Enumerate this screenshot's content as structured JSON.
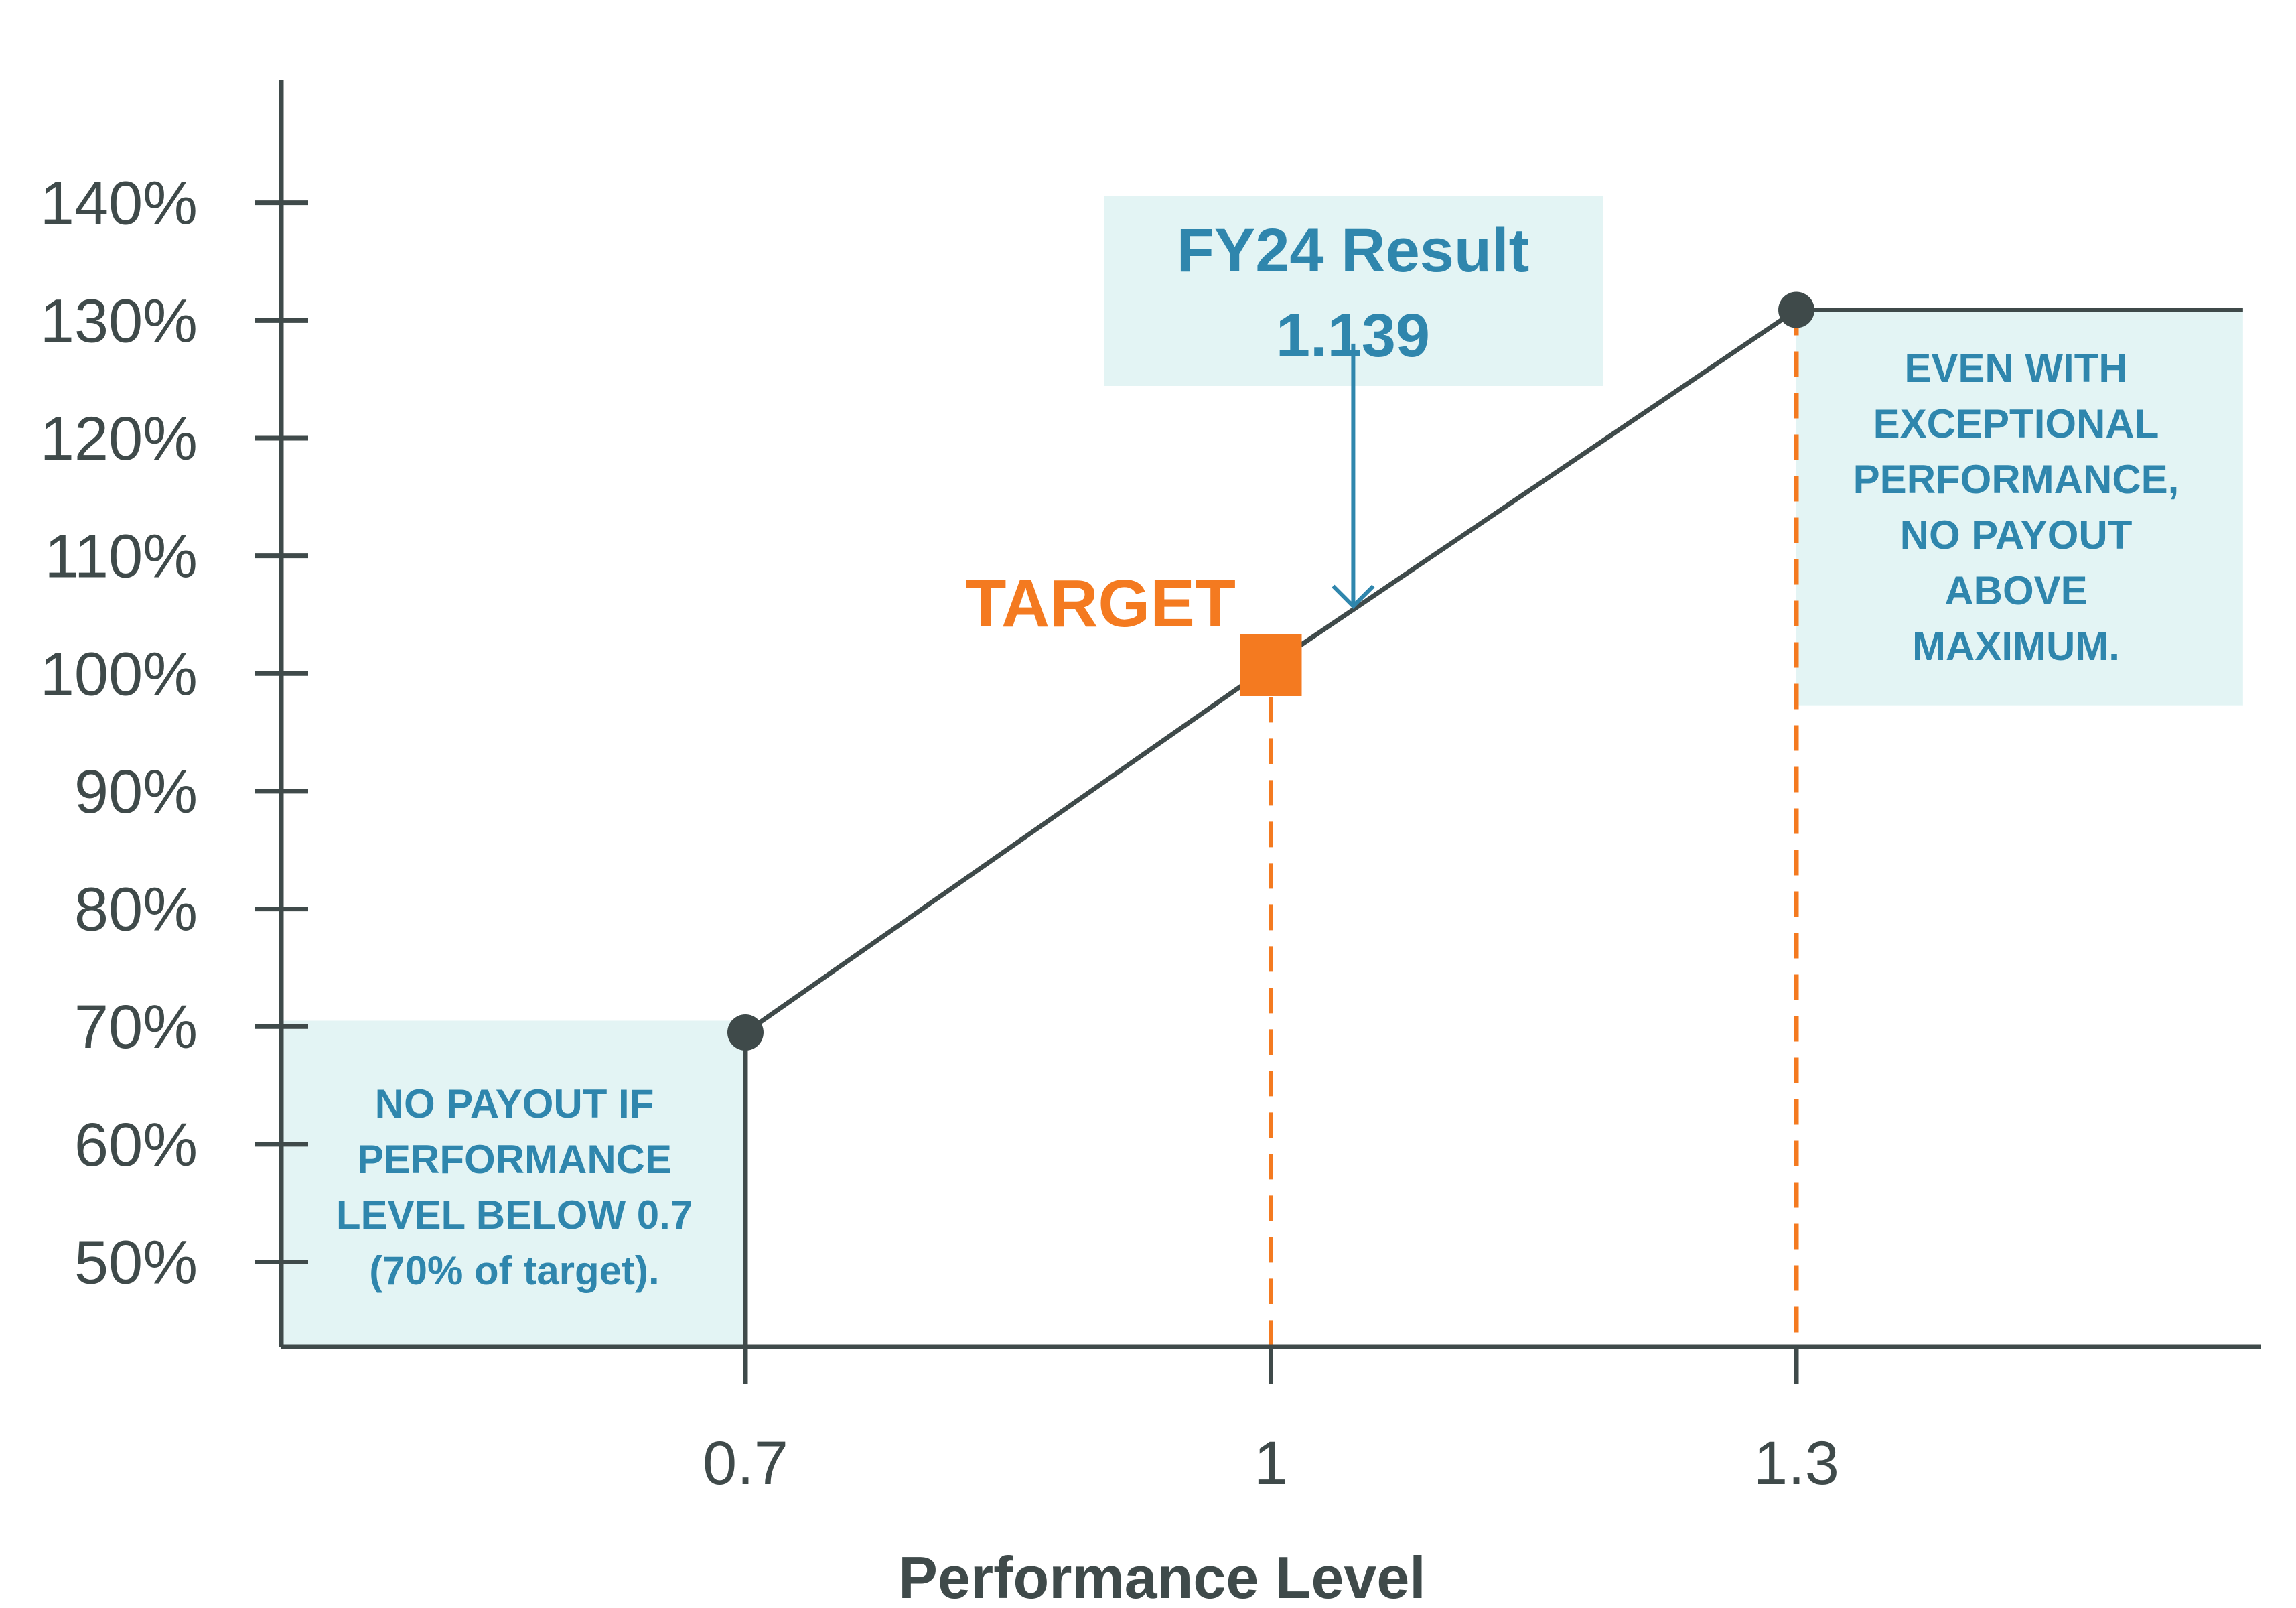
{
  "chart_data": {
    "type": "line",
    "xlabel": "Performance Level",
    "ylabel": "",
    "x_ticks": [
      0.7,
      1,
      1.3
    ],
    "x_tick_labels": [
      "0.7",
      "1",
      "1.3"
    ],
    "y_ticks": [
      50,
      60,
      70,
      80,
      90,
      100,
      110,
      120,
      130,
      140
    ],
    "y_tick_labels": [
      "50%",
      "60%",
      "70%",
      "80%",
      "90%",
      "100%",
      "110%",
      "120%",
      "130%",
      "140%"
    ],
    "xlim": [
      0.435,
      1.565
    ],
    "ylim": [
      42.8,
      150.4
    ],
    "grid": false,
    "series": [
      {
        "x": [
          0.7,
          1.0,
          1.3,
          1.555
        ],
        "y": [
          69.5,
          100.7,
          130.9,
          130.9
        ]
      }
    ],
    "threshold_drop": {
      "x": 0.7,
      "y_from": 69.5,
      "y_to": 42.8
    },
    "target": {
      "label": "TARGET",
      "x": 1.0,
      "y": 100.7
    },
    "result": {
      "title": "FY24 Result",
      "value": "1.139",
      "arrow_x": 1.047,
      "arrow_y": [
        104.7,
        113.8
      ]
    },
    "guides": [
      {
        "x": 1.0,
        "y_from": 42.8,
        "y_to": 98
      },
      {
        "x": 1.3,
        "y_from": 42.8,
        "y_to": 130.9
      }
    ],
    "annotations": {
      "below_min": [
        "NO PAYOUT IF",
        "PERFORMANCE",
        "LEVEL BELOW 0.7",
        "(70% of target)."
      ],
      "above_max": [
        "EVEN WITH",
        "EXCEPTIONAL",
        "PERFORMANCE,",
        "NO PAYOUT",
        "ABOVE",
        "MAXIMUM."
      ]
    },
    "colors": {
      "axis": "#3f4a4a",
      "line": "#3f4a4a",
      "accent": "#f47a20",
      "box_fill": "#e3f4f4",
      "box_text": "#2f86ad"
    }
  }
}
